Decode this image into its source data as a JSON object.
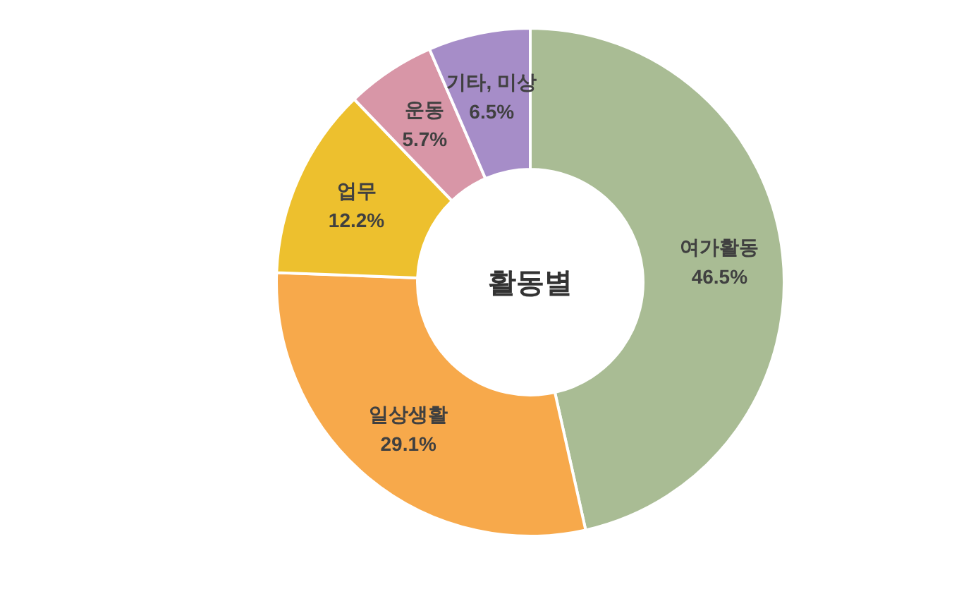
{
  "chart_data": {
    "type": "donut",
    "title": "활동별",
    "categories": [
      "여가활동",
      "일상생활",
      "업무",
      "운동",
      "기타, 미상"
    ],
    "values": [
      46.5,
      29.1,
      12.2,
      5.7,
      6.5
    ],
    "value_labels": [
      "46.5%",
      "29.1%",
      "12.2%",
      "5.7%",
      "6.5%"
    ],
    "colors": [
      "#a9bc94",
      "#f7a94b",
      "#edc02e",
      "#d896a7",
      "#a68dc8"
    ],
    "legend": false
  }
}
